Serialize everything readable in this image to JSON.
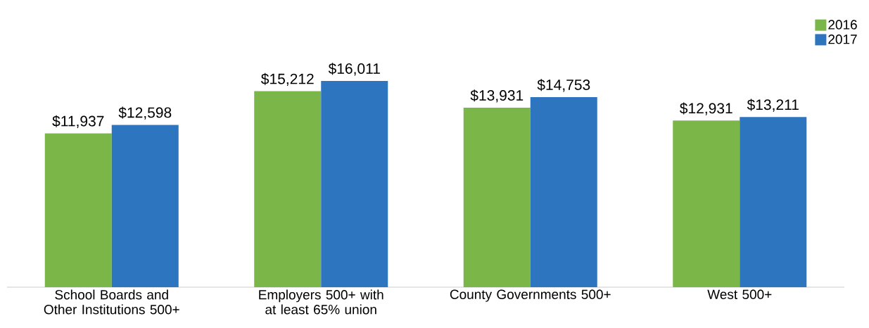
{
  "chart_data": {
    "type": "bar",
    "categories": [
      "School Boards and Other Institutions 500+",
      "Employers 500+ with at least 65% union",
      "County Governments 500+",
      "West 500+"
    ],
    "series": [
      {
        "name": "2016",
        "color": "#7ab648",
        "values": [
          11937,
          15212,
          13931,
          12931
        ],
        "value_labels": [
          "$11,937",
          "$15,212",
          "$13,931",
          "$12,931"
        ]
      },
      {
        "name": "2017",
        "color": "#2e75c0",
        "values": [
          12598,
          16011,
          14753,
          13211
        ],
        "value_labels": [
          "$12,598",
          "$16,011",
          "$14,753",
          "$13,211"
        ]
      }
    ],
    "legend": "top right"
  }
}
